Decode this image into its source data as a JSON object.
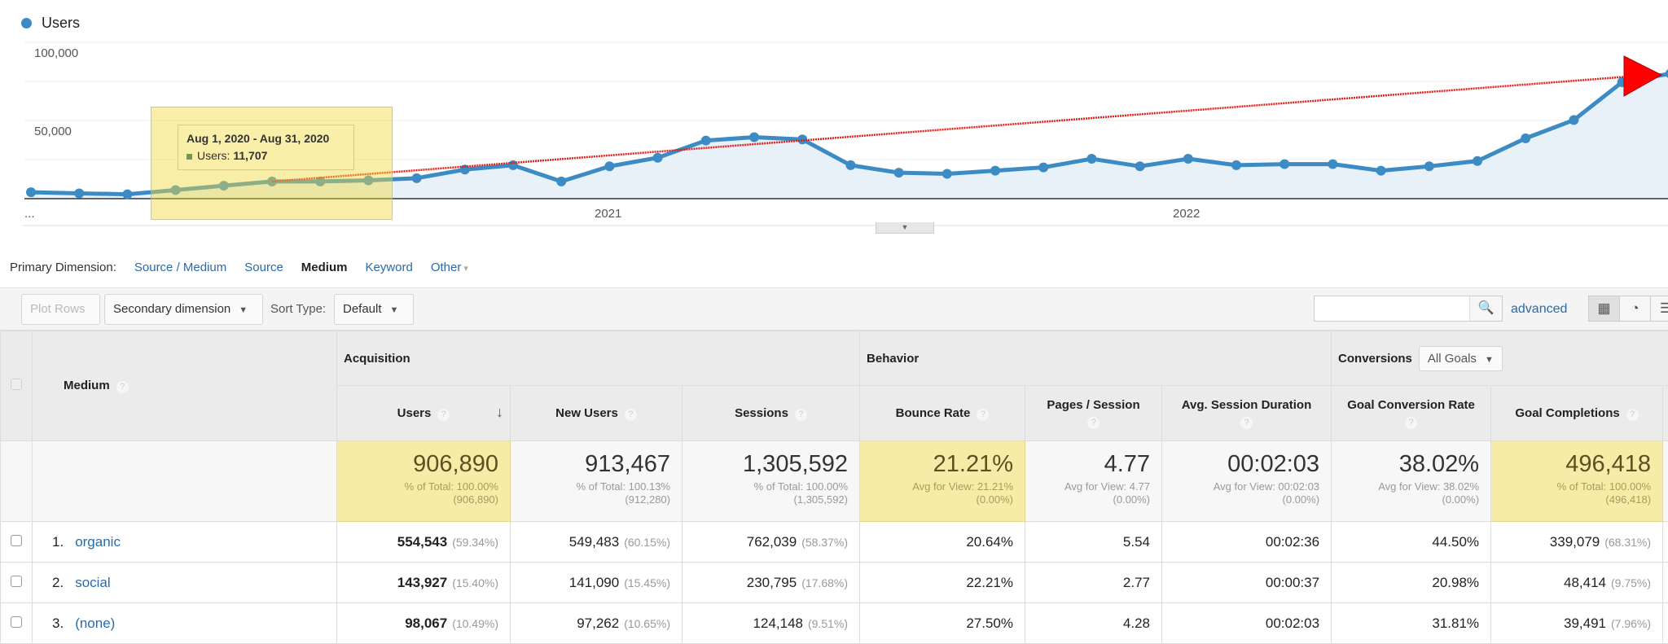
{
  "chart_data": {
    "type": "area",
    "series": [
      {
        "name": "Users",
        "values": [
          4100,
          3400,
          2800,
          5500,
          8300,
          11000,
          11000,
          11707,
          13100,
          18600,
          21400,
          11000,
          20700,
          26200,
          37200,
          39300,
          37900,
          21400,
          16600,
          15900,
          17900,
          20000,
          25500,
          20700,
          25500,
          21400,
          22100,
          22100,
          17900,
          20700,
          24100,
          38600,
          50300,
          74500,
          80000
        ]
      }
    ],
    "x_start": "Jan 2020",
    "x_interval": "month",
    "x_tick_labels": [
      "...",
      "2021",
      "2022"
    ],
    "y_tick_labels": [
      "100,000",
      "50,000"
    ],
    "ylim": [
      0,
      100000
    ],
    "grid": true,
    "legend": "top-left",
    "colors": {
      "line": "#3d8bc4",
      "fill": "#e8f0f8",
      "trend": "#e0201a",
      "highlight": "#f0da3c"
    },
    "annotations": {
      "trend_line": {
        "from_index": 5,
        "to_index": 34,
        "arrow": "red-triangle"
      },
      "highlight_range": [
        "Jun 2020",
        "Aug 2020"
      ]
    },
    "tooltip": {
      "title": "Aug 1, 2020 - Aug 31, 2020",
      "label": "Users:",
      "value": "11,707"
    }
  },
  "primary_dimension": {
    "label": "Primary Dimension:",
    "options": [
      "Source / Medium",
      "Source",
      "Medium",
      "Keyword",
      "Other"
    ],
    "selected": "Medium"
  },
  "toolbar": {
    "plot_rows": "Plot Rows",
    "secondary_dimension": "Secondary dimension",
    "sort_type_label": "Sort Type:",
    "sort_type_value": "Default",
    "search_placeholder": "",
    "advanced": "advanced"
  },
  "table": {
    "dimension_header": "Medium",
    "groups": {
      "acquisition": "Acquisition",
      "behavior": "Behavior",
      "conversions": "Conversions",
      "goal_select": "All Goals"
    },
    "columns": [
      "Users",
      "New Users",
      "Sessions",
      "Bounce Rate",
      "Pages / Session",
      "Avg. Session Duration",
      "Goal Conversion Rate",
      "Goal Completions"
    ],
    "sorted_column": "Users",
    "totals": [
      {
        "value": "906,890",
        "sub1": "% of Total: 100.00%",
        "sub2": "(906,890)"
      },
      {
        "value": "913,467",
        "sub1": "% of Total: 100.13%",
        "sub2": "(912,280)"
      },
      {
        "value": "1,305,592",
        "sub1": "% of Total: 100.00%",
        "sub2": "(1,305,592)"
      },
      {
        "value": "21.21%",
        "sub1": "Avg for View: 21.21%",
        "sub2": "(0.00%)"
      },
      {
        "value": "4.77",
        "sub1": "Avg for View: 4.77",
        "sub2": "(0.00%)"
      },
      {
        "value": "00:02:03",
        "sub1": "Avg for View: 00:02:03",
        "sub2": "(0.00%)"
      },
      {
        "value": "38.02%",
        "sub1": "Avg for View: 38.02%",
        "sub2": "(0.00%)"
      },
      {
        "value": "496,418",
        "sub1": "% of Total: 100.00%",
        "sub2": "(496,418)"
      }
    ],
    "rows": [
      {
        "n": "1.",
        "medium": "organic",
        "users": "554,543",
        "users_pct": "(59.34%)",
        "new_users": "549,483",
        "new_users_pct": "(60.15%)",
        "sessions": "762,039",
        "sessions_pct": "(58.37%)",
        "bounce": "20.64%",
        "pages": "5.54",
        "duration": "00:02:36",
        "gcr": "44.50%",
        "goals": "339,079",
        "goals_pct": "(68.31%)"
      },
      {
        "n": "2.",
        "medium": "social",
        "users": "143,927",
        "users_pct": "(15.40%)",
        "new_users": "141,090",
        "new_users_pct": "(15.45%)",
        "sessions": "230,795",
        "sessions_pct": "(17.68%)",
        "bounce": "22.21%",
        "pages": "2.77",
        "duration": "00:00:37",
        "gcr": "20.98%",
        "goals": "48,414",
        "goals_pct": "(9.75%)"
      },
      {
        "n": "3.",
        "medium": "(none)",
        "users": "98,067",
        "users_pct": "(10.49%)",
        "new_users": "97,262",
        "new_users_pct": "(10.65%)",
        "sessions": "124,148",
        "sessions_pct": "(9.51%)",
        "bounce": "27.50%",
        "pages": "4.28",
        "duration": "00:02:03",
        "gcr": "31.81%",
        "goals": "39,491",
        "goals_pct": "(7.96%)"
      }
    ]
  }
}
